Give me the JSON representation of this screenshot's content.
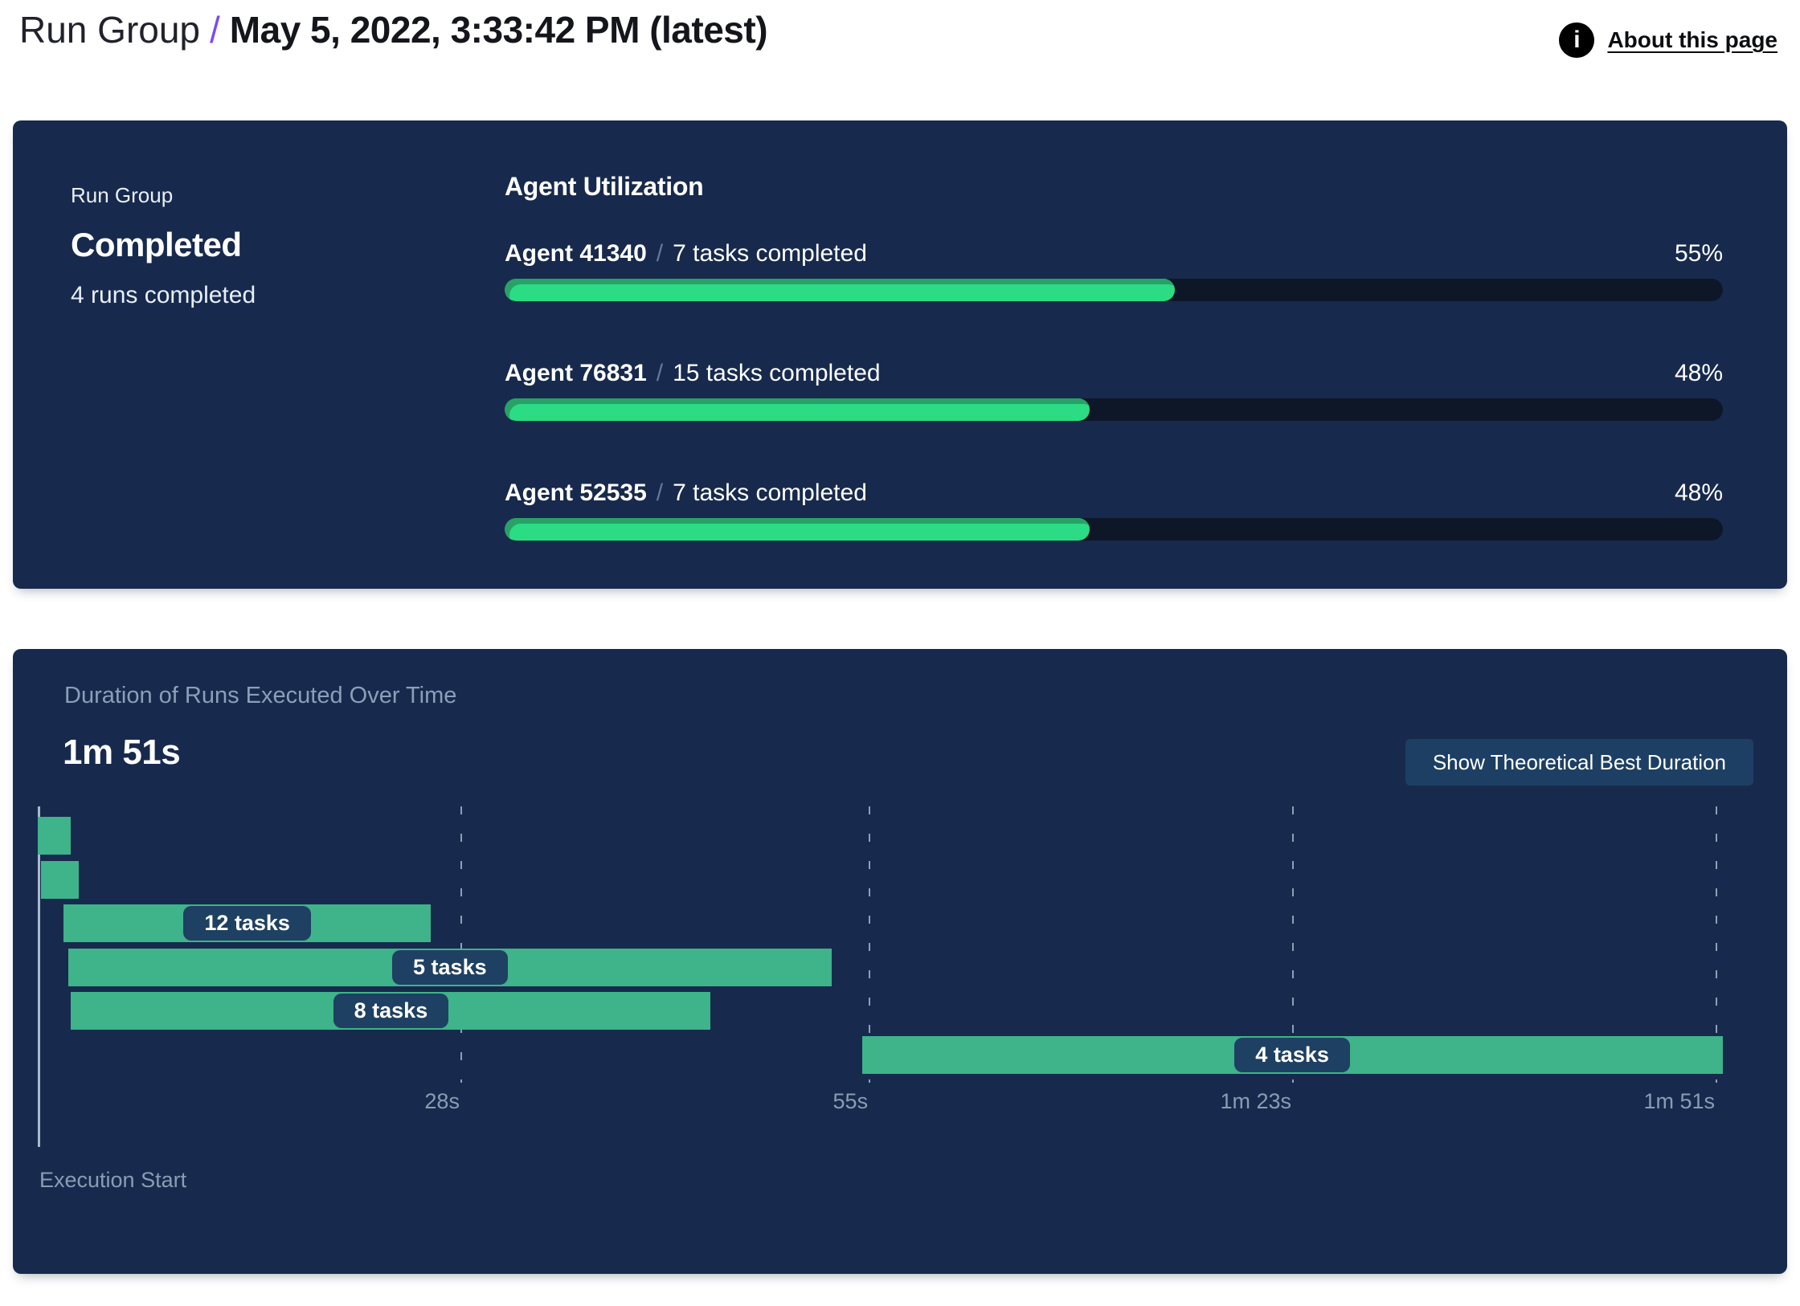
{
  "header": {
    "breadcrumb": "Run Group",
    "separator": "/",
    "title": "May 5, 2022, 3:33:42 PM (latest)",
    "about": {
      "label": "About this page",
      "icon_glyph": "i"
    }
  },
  "run_group_panel": {
    "label": "Run Group",
    "status": "Completed",
    "runs_summary": "4 runs completed",
    "agent_utilization": {
      "title": "Agent Utilization",
      "separator": "/",
      "agents": [
        {
          "name": "Agent 41340",
          "tasks": "7 tasks completed",
          "pct_label": "55%"
        },
        {
          "name": "Agent 76831",
          "tasks": "15 tasks completed",
          "pct_label": "48%"
        },
        {
          "name": "Agent 52535",
          "tasks": "7 tasks completed",
          "pct_label": "48%"
        }
      ]
    }
  },
  "duration_panel": {
    "title": "Duration of Runs Executed Over Time",
    "total_duration": "1m 51s",
    "button_label": "Show Theoretical Best Duration",
    "x_axis_label": "Execution Start"
  },
  "chart_data": [
    {
      "type": "bar",
      "subtype": "horizontal-progress",
      "title": "Agent Utilization",
      "categories": [
        "Agent 41340",
        "Agent 76831",
        "Agent 52535"
      ],
      "values": [
        55,
        48,
        48
      ],
      "value_suffix": "%",
      "xlim": [
        0,
        100
      ],
      "annotations": [
        "7 tasks completed",
        "15 tasks completed",
        "7 tasks completed"
      ]
    },
    {
      "type": "bar",
      "subtype": "gantt",
      "title": "Duration of Runs Executed Over Time",
      "total_duration_label": "1m 51s",
      "xlabel": "Execution Start",
      "xlim_seconds": [
        0,
        111
      ],
      "grid": "dashed-vertical",
      "x_ticks": [
        {
          "label": "28s",
          "seconds": 28
        },
        {
          "label": "55s",
          "seconds": 55
        },
        {
          "label": "1m 23s",
          "seconds": 83
        },
        {
          "label": "1m 51s",
          "seconds": 111
        }
      ],
      "runs": [
        {
          "label": "",
          "start_s": 0,
          "end_s": 2.2
        },
        {
          "label": "",
          "start_s": 0.2,
          "end_s": 2.7
        },
        {
          "label": "12 tasks",
          "start_s": 1.7,
          "end_s": 26.0
        },
        {
          "label": "5 tasks",
          "start_s": 2.0,
          "end_s": 52.5
        },
        {
          "label": "8 tasks",
          "start_s": 2.2,
          "end_s": 44.5
        },
        {
          "label": "4 tasks",
          "start_s": 54.5,
          "end_s": 111.4
        }
      ]
    }
  ],
  "colors": {
    "panel_bg": "#172a4d",
    "accent_purple": "#7b4cf2",
    "progress_fill": "#2bdc84",
    "progress_fill_shade": "#28a167",
    "progress_track": "#0d1728",
    "gantt_bar": "#3fb38a",
    "pill_bg": "#1e4062",
    "button_bg": "#1d3f63",
    "muted_text": "#8b9cb3",
    "axis_line": "#a9b9cd"
  }
}
